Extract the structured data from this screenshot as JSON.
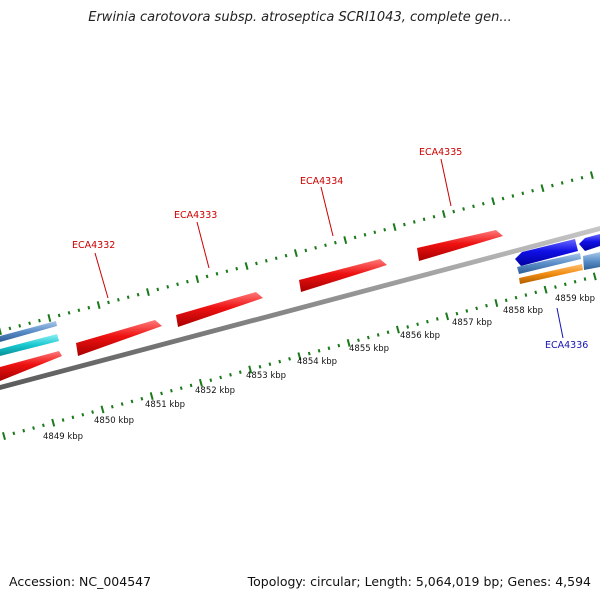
{
  "title": "Erwinia carotovora subsp. atroseptica SCRI1043, complete gen...",
  "footer": {
    "accession": "Accession: NC_004547",
    "summary": "Topology: circular; Length: 5,064,019 bp; Genes: 4,594"
  },
  "colors": {
    "forward_gene": "#ee1111",
    "reverse_gene": "#1010e6",
    "cyan_feature": "#18c8d0",
    "steel_feature": "#5a8ec8",
    "orange_feature": "#f08c10",
    "tick": "#1a7a1a",
    "backbone": "#8a8a8a"
  },
  "scale_labels": [
    "4849 kbp",
    "4850 kbp",
    "4851 kbp",
    "4852 kbp",
    "4853 kbp",
    "4854 kbp",
    "4855 kbp",
    "4856 kbp",
    "4857 kbp",
    "4858 kbp",
    "4859 kbp"
  ],
  "gene_labels": [
    {
      "text": "ECA4332",
      "strand": "forward"
    },
    {
      "text": "ECA4333",
      "strand": "forward"
    },
    {
      "text": "ECA4334",
      "strand": "forward"
    },
    {
      "text": "ECA4335",
      "strand": "forward"
    },
    {
      "text": "ECA4336",
      "strand": "reverse"
    }
  ]
}
